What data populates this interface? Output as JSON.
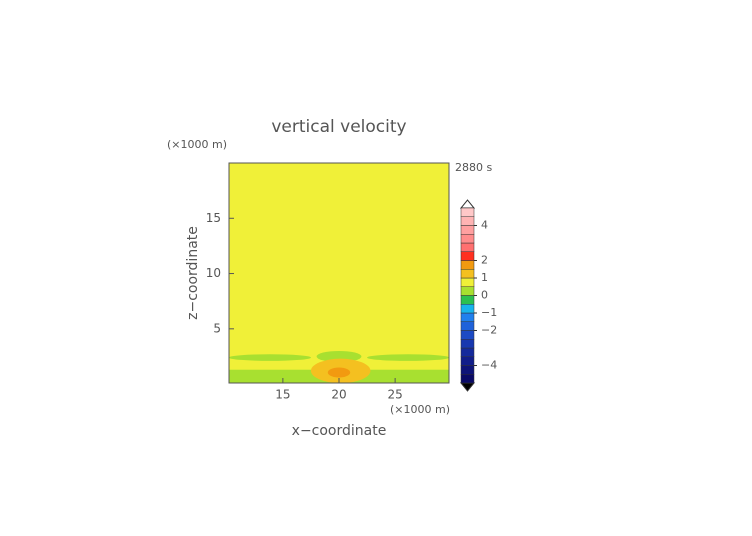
{
  "chart_data": {
    "type": "contour",
    "title": "vertical velocity",
    "xlabel": "x−coordinate",
    "ylabel": "z−coordinate",
    "x_unit": "(×1000 m)",
    "y_unit": "(×1000 m)",
    "time_label": "2880 s",
    "xlim": [
      10.2,
      29.8
    ],
    "ylim": [
      0.1,
      20
    ],
    "xticks": [
      15,
      20,
      25
    ],
    "yticks": [
      5,
      10,
      15
    ],
    "levels": [
      -5,
      -4.5,
      -4,
      -3.5,
      -3,
      -2.5,
      -2,
      -1.5,
      -1,
      -0.5,
      0,
      0.5,
      1,
      1.5,
      2,
      2.5,
      3,
      3.5,
      4,
      4.5,
      5
    ],
    "colors": [
      "#0a0a66",
      "#0e1478",
      "#111e8a",
      "#142a9c",
      "#1838b0",
      "#1c4ac4",
      "#1f62da",
      "#2080ee",
      "#18b4ec",
      "#2cc050",
      "#a8e030",
      "#f0f038",
      "#f4c020",
      "#f29a10",
      "#ff3020",
      "#ff7070",
      "#ff8c8c",
      "#ffa0a0",
      "#ffb4b4",
      "#ffc8c8"
    ],
    "cticks": [
      {
        "value": 4,
        "label": "4"
      },
      {
        "value": 2,
        "label": "2"
      },
      {
        "value": 1,
        "label": "1"
      },
      {
        "value": 0,
        "label": "0"
      },
      {
        "value": -1,
        "label": "−1"
      },
      {
        "value": -2,
        "label": "−2"
      },
      {
        "value": -4,
        "label": "−4"
      }
    ],
    "regions": [
      {
        "value": 0.7,
        "x": [
          10.2,
          29.8
        ],
        "y": [
          0.1,
          20
        ],
        "shape": "rect"
      },
      {
        "value": 0.2,
        "x": [
          10.2,
          29.8
        ],
        "y": [
          0.1,
          1.3
        ],
        "shape": "rect"
      },
      {
        "value": 0.2,
        "x": [
          10.2,
          17.5
        ],
        "y": [
          2.1,
          2.7
        ],
        "shape": "ellipse"
      },
      {
        "value": 0.2,
        "x": [
          22.5,
          29.8
        ],
        "y": [
          2.1,
          2.7
        ],
        "shape": "ellipse"
      },
      {
        "value": 0.2,
        "x": [
          18,
          22
        ],
        "y": [
          2.0,
          3.0
        ],
        "shape": "ellipse"
      },
      {
        "value": 1.2,
        "x": [
          17.5,
          22.8
        ],
        "y": [
          0.1,
          2.3
        ],
        "shape": "ellipse"
      },
      {
        "value": 1.6,
        "x": [
          19,
          21
        ],
        "y": [
          0.6,
          1.5
        ],
        "shape": "ellipse"
      }
    ]
  }
}
